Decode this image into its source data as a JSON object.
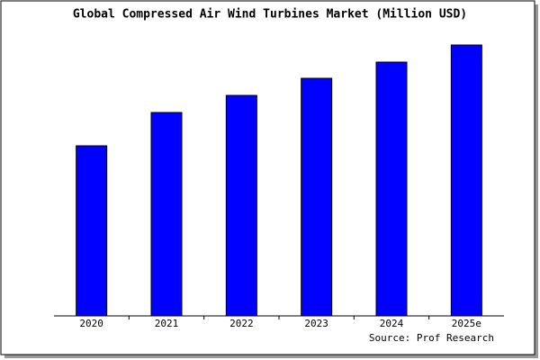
{
  "chart_data": {
    "type": "bar",
    "title": "Global Compressed Air Wind Turbines Market (Million USD)",
    "categories": [
      "2020",
      "2021",
      "2022",
      "2023",
      "2024",
      "2025e"
    ],
    "values": [
      189,
      226,
      245,
      264,
      282,
      301
    ],
    "color": "#0000ff",
    "source": "Source: Prof Research"
  }
}
